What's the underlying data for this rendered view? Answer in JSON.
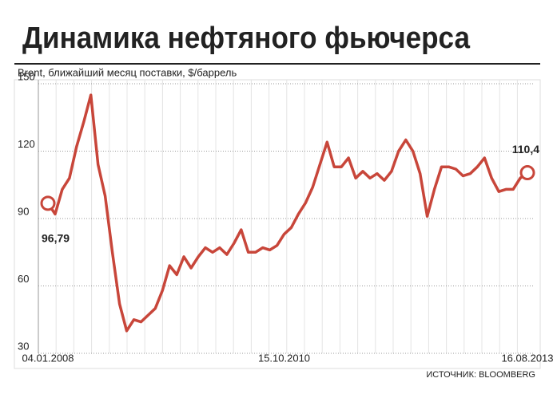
{
  "chart_data": {
    "type": "line",
    "title": "Динамика нефтяного фьючерса",
    "subtitle": "Brent, ближайший месяц поставки, $/баррель",
    "source": "ИСТОЧНИК: BLOOMBERG",
    "categories": [
      "04.01.2008",
      null,
      null,
      null,
      null,
      null,
      null,
      null,
      null,
      null,
      null,
      null,
      null,
      null,
      null,
      null,
      null,
      null,
      null,
      null,
      null,
      null,
      null,
      null,
      null,
      null,
      null,
      null,
      null,
      null,
      null,
      null,
      null,
      "15.10.2010",
      null,
      null,
      null,
      null,
      null,
      null,
      null,
      null,
      null,
      null,
      null,
      null,
      null,
      null,
      null,
      null,
      null,
      null,
      null,
      null,
      null,
      null,
      null,
      null,
      null,
      null,
      null,
      null,
      null,
      null,
      null,
      null,
      null,
      "16.08.2013"
    ],
    "values": [
      96.79,
      92,
      103,
      108,
      122,
      133,
      145,
      114,
      100,
      75,
      52,
      40,
      45,
      44,
      47,
      50,
      58,
      69,
      65,
      73,
      68,
      73,
      77,
      75,
      77,
      74,
      79,
      85,
      75,
      75,
      77,
      76,
      78,
      83,
      86,
      92,
      97,
      104,
      114,
      124,
      113,
      113,
      117,
      108,
      111,
      108,
      110,
      107,
      111,
      120,
      125,
      120,
      110,
      91,
      103,
      113,
      113,
      112,
      109,
      110,
      113,
      117,
      108,
      102,
      103,
      103,
      108,
      110.4
    ],
    "value_labels": [
      "96,79",
      null,
      null,
      null,
      null,
      null,
      null,
      null,
      null,
      null,
      null,
      null,
      null,
      null,
      null,
      null,
      null,
      null,
      null,
      null,
      null,
      null,
      null,
      null,
      null,
      null,
      null,
      null,
      null,
      null,
      null,
      null,
      null,
      null,
      null,
      null,
      null,
      null,
      null,
      null,
      null,
      null,
      null,
      null,
      null,
      null,
      null,
      null,
      null,
      null,
      null,
      null,
      null,
      null,
      null,
      null,
      null,
      null,
      null,
      null,
      null,
      null,
      null,
      null,
      null,
      null,
      null,
      "110,4"
    ],
    "color": "#c8463a",
    "ylim": [
      30,
      150
    ],
    "yticks": [
      30,
      60,
      90,
      120,
      150
    ],
    "grid": true
  }
}
